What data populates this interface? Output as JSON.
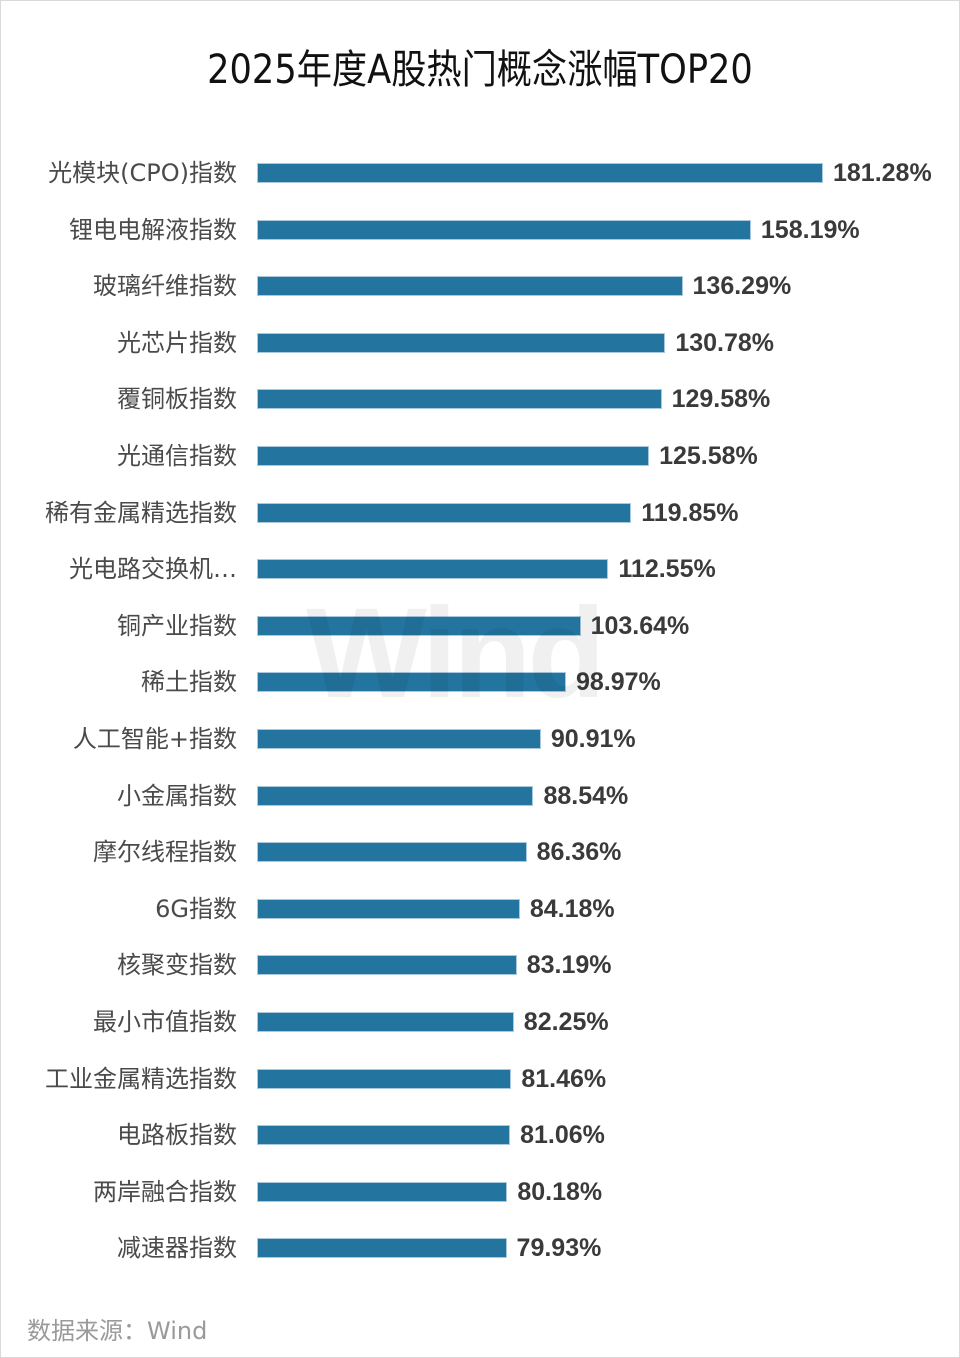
{
  "title": "2025年度A股热门概念涨幅TOP20",
  "watermark": "Wind",
  "source": "数据来源：Wind",
  "colors": {
    "bar": "#2375a0",
    "label": "#4a4a4a",
    "value": "#3a3a3a",
    "source": "#9a9a9a"
  },
  "rows": [
    {
      "label": "光模块(CPO)指数",
      "value_text": "181.28%",
      "value": 181.28
    },
    {
      "label": "锂电电解液指数",
      "value_text": "158.19%",
      "value": 158.19
    },
    {
      "label": "玻璃纤维指数",
      "value_text": "136.29%",
      "value": 136.29
    },
    {
      "label": "光芯片指数",
      "value_text": "130.78%",
      "value": 130.78
    },
    {
      "label": "覆铜板指数",
      "value_text": "129.58%",
      "value": 129.58
    },
    {
      "label": "光通信指数",
      "value_text": "125.58%",
      "value": 125.58
    },
    {
      "label": "稀有金属精选指数",
      "value_text": "119.85%",
      "value": 119.85
    },
    {
      "label": "光电路交换机…",
      "value_text": "112.55%",
      "value": 112.55
    },
    {
      "label": "铜产业指数",
      "value_text": "103.64%",
      "value": 103.64
    },
    {
      "label": "稀土指数",
      "value_text": "98.97%",
      "value": 98.97
    },
    {
      "label": "人工智能+指数",
      "value_text": "90.91%",
      "value": 90.91
    },
    {
      "label": "小金属指数",
      "value_text": "88.54%",
      "value": 88.54
    },
    {
      "label": "摩尔线程指数",
      "value_text": "86.36%",
      "value": 86.36
    },
    {
      "label": "6G指数",
      "value_text": "84.18%",
      "value": 84.18
    },
    {
      "label": "核聚变指数",
      "value_text": "83.19%",
      "value": 83.19
    },
    {
      "label": "最小市值指数",
      "value_text": "82.25%",
      "value": 82.25
    },
    {
      "label": "工业金属精选指数",
      "value_text": "81.46%",
      "value": 81.46
    },
    {
      "label": "电路板指数",
      "value_text": "81.06%",
      "value": 81.06
    },
    {
      "label": "两岸融合指数",
      "value_text": "80.18%",
      "value": 80.18
    },
    {
      "label": "减速器指数",
      "value_text": "79.93%",
      "value": 79.93
    }
  ],
  "chart_data": {
    "type": "bar",
    "orientation": "horizontal",
    "title": "2025年度A股热门概念涨幅TOP20",
    "xlabel": "",
    "ylabel": "",
    "unit": "%",
    "grid": false,
    "legend": null,
    "data_labels": true,
    "categories": [
      "光模块(CPO)指数",
      "锂电电解液指数",
      "玻璃纤维指数",
      "光芯片指数",
      "覆铜板指数",
      "光通信指数",
      "稀有金属精选指数",
      "光电路交换机…",
      "铜产业指数",
      "稀土指数",
      "人工智能+指数",
      "小金属指数",
      "摩尔线程指数",
      "6G指数",
      "核聚变指数",
      "最小市值指数",
      "工业金属精选指数",
      "电路板指数",
      "两岸融合指数",
      "减速器指数"
    ],
    "values": [
      181.28,
      158.19,
      136.29,
      130.78,
      129.58,
      125.58,
      119.85,
      112.55,
      103.64,
      98.97,
      90.91,
      88.54,
      86.36,
      84.18,
      83.19,
      82.25,
      81.46,
      81.06,
      80.18,
      79.93
    ],
    "xlim": [
      0,
      181.28
    ],
    "annotations": [
      "数据来源：Wind"
    ]
  }
}
